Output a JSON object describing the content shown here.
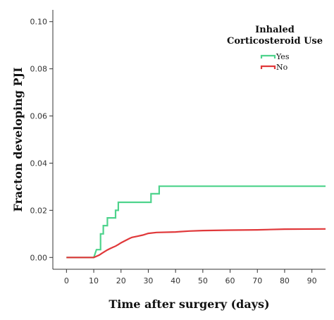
{
  "chart_data": {
    "type": "line",
    "step": true,
    "xlabel": "Time after surgery (days)",
    "ylabel": "Fracton developing PJI",
    "xlim": [
      -5,
      95
    ],
    "ylim": [
      -0.005,
      0.105
    ],
    "x_ticks": [
      0,
      10,
      20,
      30,
      40,
      50,
      60,
      70,
      80,
      90
    ],
    "y_ticks": [
      0.0,
      0.02,
      0.04,
      0.06,
      0.08,
      0.1
    ],
    "y_tick_labels": [
      "0.00",
      "0.02",
      "0.04",
      "0.06",
      "0.08",
      "0.10"
    ],
    "grid": false,
    "legend": {
      "title": "Inhaled\nCorticosteroid Use",
      "title_lines": [
        "Inhaled",
        "Corticosteroid Use"
      ],
      "position": "top-right"
    },
    "series": [
      {
        "name": "Yes",
        "color": "#4ed38c",
        "points": [
          [
            0,
            0.0
          ],
          [
            10,
            0.0
          ],
          [
            11,
            0.0033
          ],
          [
            12.5,
            0.0033
          ],
          [
            12.5,
            0.01
          ],
          [
            13.5,
            0.01
          ],
          [
            13.5,
            0.0135
          ],
          [
            15,
            0.0135
          ],
          [
            15,
            0.0168
          ],
          [
            18,
            0.0168
          ],
          [
            18,
            0.02
          ],
          [
            19,
            0.02
          ],
          [
            19,
            0.0234
          ],
          [
            31,
            0.0234
          ],
          [
            31,
            0.027
          ],
          [
            34,
            0.027
          ],
          [
            34,
            0.0302
          ],
          [
            95,
            0.0302
          ]
        ]
      },
      {
        "name": "No",
        "color": "#e0383a",
        "points": [
          [
            0,
            0.0
          ],
          [
            10,
            0.0
          ],
          [
            11,
            0.0005
          ],
          [
            12,
            0.001
          ],
          [
            13,
            0.0018
          ],
          [
            14,
            0.0025
          ],
          [
            15,
            0.0032
          ],
          [
            16,
            0.0038
          ],
          [
            17,
            0.0043
          ],
          [
            18,
            0.0048
          ],
          [
            19,
            0.0055
          ],
          [
            20,
            0.0062
          ],
          [
            21,
            0.0068
          ],
          [
            22,
            0.0074
          ],
          [
            23,
            0.008
          ],
          [
            24,
            0.0085
          ],
          [
            26,
            0.009
          ],
          [
            28,
            0.0095
          ],
          [
            30,
            0.0102
          ],
          [
            33,
            0.0106
          ],
          [
            40,
            0.0108
          ],
          [
            45,
            0.0112
          ],
          [
            50,
            0.0114
          ],
          [
            60,
            0.0116
          ],
          [
            70,
            0.0117
          ],
          [
            80,
            0.012
          ],
          [
            95,
            0.0121
          ]
        ]
      }
    ]
  }
}
